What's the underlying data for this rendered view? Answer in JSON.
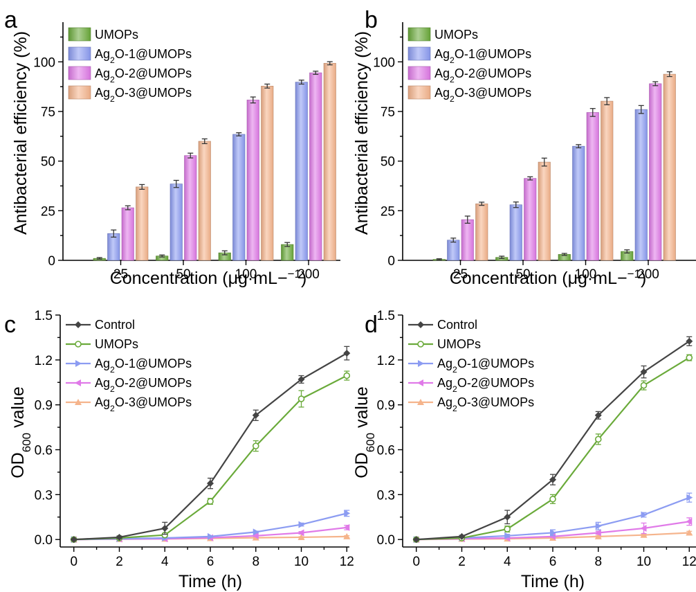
{
  "colors": {
    "Control": "#444444",
    "UMOPs": "#6aaa3a",
    "Ag2O-1@UMOPs": "#8c9cf2",
    "Ag2O-2@UMOPs": "#e07ae8",
    "Ag2O-3@UMOPs": "#f5b48c"
  },
  "chart_data": [
    {
      "panel": "a",
      "type": "bar",
      "xlabel": "Concentration (μg·mL−1)",
      "ylabel": "Antibacterial efficiency (%)",
      "ylim": [
        0,
        120
      ],
      "yticks": [
        0,
        25,
        50,
        75,
        100
      ],
      "categories": [
        "25",
        "50",
        "100",
        "200"
      ],
      "legend_position": "top-left",
      "series": [
        {
          "name": "UMOPs",
          "values": [
            1.0,
            2.2,
            3.8,
            8.0
          ],
          "errors": [
            0.4,
            0.5,
            1.0,
            1.0
          ]
        },
        {
          "name": "Ag2O-1@UMOPs",
          "values": [
            13.5,
            38.5,
            63.5,
            89.8
          ],
          "errors": [
            1.8,
            1.8,
            0.8,
            1.0
          ]
        },
        {
          "name": "Ag2O-2@UMOPs",
          "values": [
            26.5,
            52.8,
            80.8,
            94.5
          ],
          "errors": [
            1.0,
            1.2,
            1.5,
            0.8
          ]
        },
        {
          "name": "Ag2O-3@UMOPs",
          "values": [
            37.0,
            60.0,
            87.8,
            99.3
          ],
          "errors": [
            1.2,
            1.2,
            1.0,
            0.8
          ]
        }
      ]
    },
    {
      "panel": "b",
      "type": "bar",
      "xlabel": "Concentration (μg·mL−1)",
      "ylabel": "Antibacterial efficiency (%)",
      "ylim": [
        0,
        120
      ],
      "yticks": [
        0,
        25,
        50,
        75,
        100
      ],
      "categories": [
        "25",
        "50",
        "100",
        "200"
      ],
      "legend_position": "top-left",
      "series": [
        {
          "name": "UMOPs",
          "values": [
            0.5,
            1.5,
            3.0,
            4.5
          ],
          "errors": [
            0.3,
            0.6,
            0.5,
            0.8
          ]
        },
        {
          "name": "Ag2O-1@UMOPs",
          "values": [
            10.2,
            28.0,
            57.5,
            76.0
          ],
          "errors": [
            1.0,
            1.4,
            0.8,
            2.0
          ]
        },
        {
          "name": "Ag2O-2@UMOPs",
          "values": [
            20.5,
            41.3,
            74.5,
            89.0
          ],
          "errors": [
            1.8,
            0.8,
            2.0,
            1.0
          ]
        },
        {
          "name": "Ag2O-3@UMOPs",
          "values": [
            28.5,
            49.5,
            80.2,
            93.8
          ],
          "errors": [
            0.8,
            2.0,
            1.8,
            1.2
          ]
        }
      ]
    },
    {
      "panel": "c",
      "type": "line",
      "xlabel": "Time (h)",
      "ylabel": "OD600 value",
      "xlim": [
        -0.6,
        12.6
      ],
      "ylim": [
        -0.05,
        1.5
      ],
      "xticks": [
        0,
        2,
        4,
        6,
        8,
        10,
        12
      ],
      "yticks": [
        0.0,
        0.3,
        0.6,
        0.9,
        1.2,
        1.5
      ],
      "x": [
        0,
        2,
        4,
        6,
        8,
        10,
        12
      ],
      "legend_position": "top-left",
      "series": [
        {
          "name": "Control",
          "values": [
            0.0,
            0.015,
            0.075,
            0.375,
            0.83,
            1.07,
            1.245
          ],
          "errors": [
            0.005,
            0.008,
            0.04,
            0.035,
            0.035,
            0.025,
            0.045
          ]
        },
        {
          "name": "UMOPs",
          "values": [
            0.0,
            0.01,
            0.03,
            0.255,
            0.625,
            0.94,
            1.095
          ],
          "errors": [
            0.005,
            0.005,
            0.01,
            0.02,
            0.035,
            0.055,
            0.03
          ]
        },
        {
          "name": "Ag2O-1@UMOPs",
          "values": [
            0.0,
            0.005,
            0.01,
            0.02,
            0.05,
            0.1,
            0.175
          ],
          "errors": [
            0.003,
            0.003,
            0.005,
            0.005,
            0.006,
            0.01,
            0.02
          ]
        },
        {
          "name": "Ag2O-2@UMOPs",
          "values": [
            0.0,
            0.003,
            0.005,
            0.012,
            0.025,
            0.045,
            0.08
          ],
          "errors": [
            0.003,
            0.003,
            0.004,
            0.005,
            0.006,
            0.008,
            0.015
          ]
        },
        {
          "name": "Ag2O-3@UMOPs",
          "values": [
            0.0,
            0.002,
            0.004,
            0.008,
            0.012,
            0.015,
            0.02
          ],
          "errors": [
            0.002,
            0.002,
            0.003,
            0.003,
            0.004,
            0.004,
            0.006
          ]
        }
      ]
    },
    {
      "panel": "d",
      "type": "line",
      "xlabel": "Time (h)",
      "ylabel": "OD600 value",
      "xlim": [
        -0.6,
        12.6
      ],
      "ylim": [
        -0.05,
        1.5
      ],
      "xticks": [
        0,
        2,
        4,
        6,
        8,
        10,
        12
      ],
      "yticks": [
        0.0,
        0.3,
        0.6,
        0.9,
        1.2,
        1.5
      ],
      "x": [
        0,
        2,
        4,
        6,
        8,
        10,
        12
      ],
      "legend_position": "top-left",
      "series": [
        {
          "name": "Control",
          "values": [
            0.0,
            0.02,
            0.15,
            0.4,
            0.83,
            1.12,
            1.325
          ],
          "errors": [
            0.005,
            0.008,
            0.045,
            0.035,
            0.025,
            0.04,
            0.03
          ]
        },
        {
          "name": "UMOPs",
          "values": [
            0.0,
            0.01,
            0.07,
            0.27,
            0.67,
            1.03,
            1.215
          ],
          "errors": [
            0.005,
            0.005,
            0.02,
            0.03,
            0.035,
            0.03,
            0.02
          ]
        },
        {
          "name": "Ag2O-1@UMOPs",
          "values": [
            0.0,
            0.01,
            0.025,
            0.045,
            0.09,
            0.165,
            0.28
          ],
          "errors": [
            0.003,
            0.005,
            0.01,
            0.02,
            0.025,
            0.015,
            0.03
          ]
        },
        {
          "name": "Ag2O-2@UMOPs",
          "values": [
            0.0,
            0.005,
            0.01,
            0.02,
            0.045,
            0.075,
            0.12
          ],
          "errors": [
            0.003,
            0.004,
            0.005,
            0.006,
            0.01,
            0.035,
            0.025
          ]
        },
        {
          "name": "Ag2O-3@UMOPs",
          "values": [
            0.0,
            0.003,
            0.005,
            0.01,
            0.02,
            0.03,
            0.045
          ],
          "errors": [
            0.002,
            0.003,
            0.003,
            0.004,
            0.005,
            0.006,
            0.01
          ]
        }
      ]
    }
  ]
}
